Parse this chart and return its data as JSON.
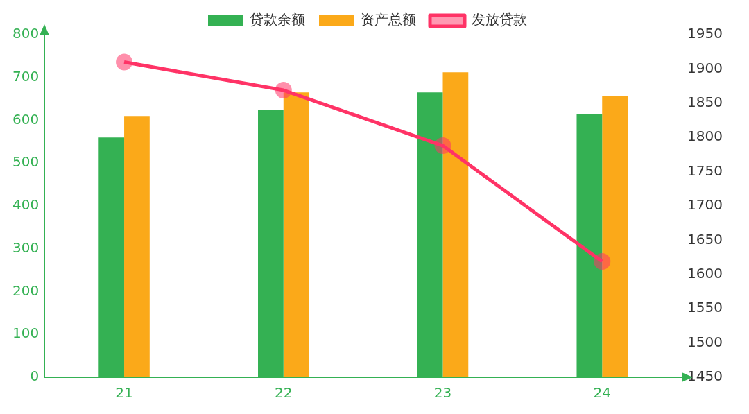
{
  "chart_data": {
    "type": "bar",
    "categories": [
      "21",
      "22",
      "23",
      "24"
    ],
    "series": [
      {
        "name": "贷款余额",
        "color": "#34b153",
        "values": [
          560,
          625,
          665,
          615
        ]
      },
      {
        "name": "资产总额",
        "color": "#fba919",
        "values": [
          610,
          665,
          712,
          657
        ]
      },
      {
        "name": "发放贷款",
        "color": "#ff3366",
        "type": "line",
        "axis": "y2",
        "marker": "circle",
        "values": [
          1910,
          1869,
          1788,
          1619
        ]
      }
    ],
    "ylim": [
      0,
      800
    ],
    "yticks": [
      0,
      100,
      200,
      300,
      400,
      500,
      600,
      700,
      800
    ],
    "y2lim": [
      1450,
      1950
    ],
    "y2ticks": [
      1450,
      1500,
      1550,
      1600,
      1650,
      1700,
      1750,
      1800,
      1850,
      1900,
      1950
    ],
    "legend": "top"
  }
}
